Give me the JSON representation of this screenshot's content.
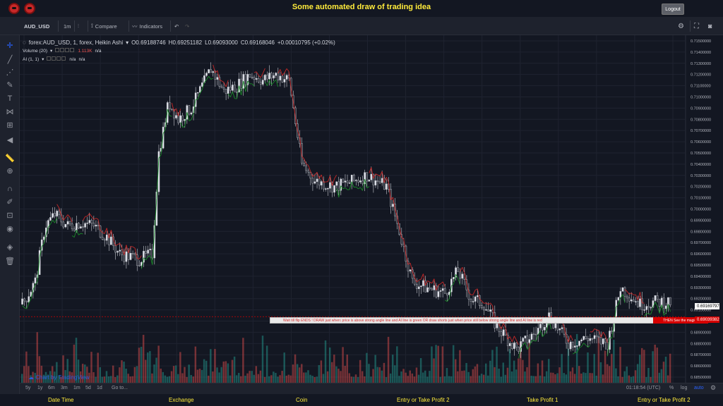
{
  "app": {
    "title": "Some automated draw of trading idea",
    "logout_label": "Logout"
  },
  "toolbar": {
    "symbol": "AUD_USD",
    "interval": "1m",
    "compare_label": "Compare",
    "indicators_label": "Indicators"
  },
  "legend": {
    "main_symbol": "forex:AUD_USD, 1, forex, Heikin Ashi",
    "open": "O0.69188746",
    "high": "H0.69251182",
    "low": "L0.69093000",
    "close": "C0.69168046",
    "change": "+0.00010795 (+0.02%)",
    "volume_label": "Volume (20)",
    "volume_value": "1.113K",
    "volume_na": "n/a",
    "ai_label": "AI (1, 1)",
    "ai_na1": "n/a",
    "ai_na2": "n/a"
  },
  "banner": {
    "text": "Wait till flip ENDS  !     DRAW just when:  price is above strong angle line and AI line is green            OR            draw shorts just when price still below strong angle line and AI line is red",
    "end_text": "THEN See the magic!!"
  },
  "price_tags": {
    "current": "0.69169797",
    "red": "0.69039382"
  },
  "price_axis": [
    "0.71500000",
    "0.71400000",
    "0.71300000",
    "0.71200000",
    "0.71100000",
    "0.71000000",
    "0.70900000",
    "0.70800000",
    "0.70700000",
    "0.70600000",
    "0.70500000",
    "0.70400000",
    "0.70300000",
    "0.70200000",
    "0.70100000",
    "0.70000000",
    "0.69900000",
    "0.69800000",
    "0.69700000",
    "0.69600000",
    "0.69500000",
    "0.69400000",
    "0.69300000",
    "0.69200000",
    "0.69100000",
    "0.69000000",
    "0.68900000",
    "0.68800000",
    "0.68700000",
    "0.68600000",
    "0.68500000"
  ],
  "time_axis": [
    "8",
    "9",
    "10",
    "11",
    "12",
    "13",
    "14",
    "10:00",
    "16",
    "17",
    "18",
    "19",
    "20",
    "21",
    "10:00",
    "22",
    "23",
    "24"
  ],
  "bottom": {
    "ranges": [
      "5y",
      "1y",
      "6m",
      "3m",
      "1m",
      "5d",
      "1d"
    ],
    "goto": "Go to...",
    "clock": "01:18:54 (UTC)",
    "percent": "%",
    "log": "log",
    "auto": "auto"
  },
  "watermark": "Chart by TradingView",
  "footer": [
    "Date Time",
    "Exchange",
    "Coin",
    "Entry or Take Profit 2",
    "Take Profit 1",
    "Entry or Take Profit 2"
  ],
  "colors": {
    "up": "#e0e3eb",
    "down": "#2a2e39",
    "ai_green": "#1b8a2a",
    "ai_red": "#c62828",
    "vol_up": "#26a69a",
    "vol_down": "#ef5350",
    "accent": "#ffeb3b"
  },
  "chart_data": {
    "type": "candlestick",
    "x_range": [
      "8",
      "24"
    ],
    "ylim": [
      0.6845,
      0.7155
    ],
    "price_points": [
      [
        0,
        0.6915
      ],
      [
        0.02,
        0.6935
      ],
      [
        0.035,
        0.6985
      ],
      [
        0.05,
        0.6995
      ],
      [
        0.07,
        0.6985
      ],
      [
        0.09,
        0.6988
      ],
      [
        0.11,
        0.6985
      ],
      [
        0.13,
        0.6975
      ],
      [
        0.15,
        0.696
      ],
      [
        0.18,
        0.6955
      ],
      [
        0.2,
        0.696
      ],
      [
        0.21,
        0.705
      ],
      [
        0.225,
        0.7095
      ],
      [
        0.24,
        0.708
      ],
      [
        0.26,
        0.709
      ],
      [
        0.29,
        0.7125
      ],
      [
        0.31,
        0.7105
      ],
      [
        0.33,
        0.711
      ],
      [
        0.35,
        0.712
      ],
      [
        0.37,
        0.7115
      ],
      [
        0.39,
        0.712
      ],
      [
        0.41,
        0.7115
      ],
      [
        0.43,
        0.704
      ],
      [
        0.45,
        0.7025
      ],
      [
        0.48,
        0.702
      ],
      [
        0.51,
        0.7025
      ],
      [
        0.53,
        0.703
      ],
      [
        0.56,
        0.702
      ],
      [
        0.58,
        0.698
      ],
      [
        0.6,
        0.6935
      ],
      [
        0.62,
        0.693
      ],
      [
        0.65,
        0.6925
      ],
      [
        0.67,
        0.6945
      ],
      [
        0.69,
        0.692
      ],
      [
        0.71,
        0.6915
      ],
      [
        0.73,
        0.6895
      ],
      [
        0.76,
        0.6875
      ],
      [
        0.79,
        0.689
      ],
      [
        0.81,
        0.6905
      ],
      [
        0.84,
        0.688
      ],
      [
        0.87,
        0.6885
      ],
      [
        0.9,
        0.688
      ],
      [
        0.92,
        0.693
      ],
      [
        0.95,
        0.6915
      ],
      [
        0.97,
        0.6917
      ]
    ]
  }
}
